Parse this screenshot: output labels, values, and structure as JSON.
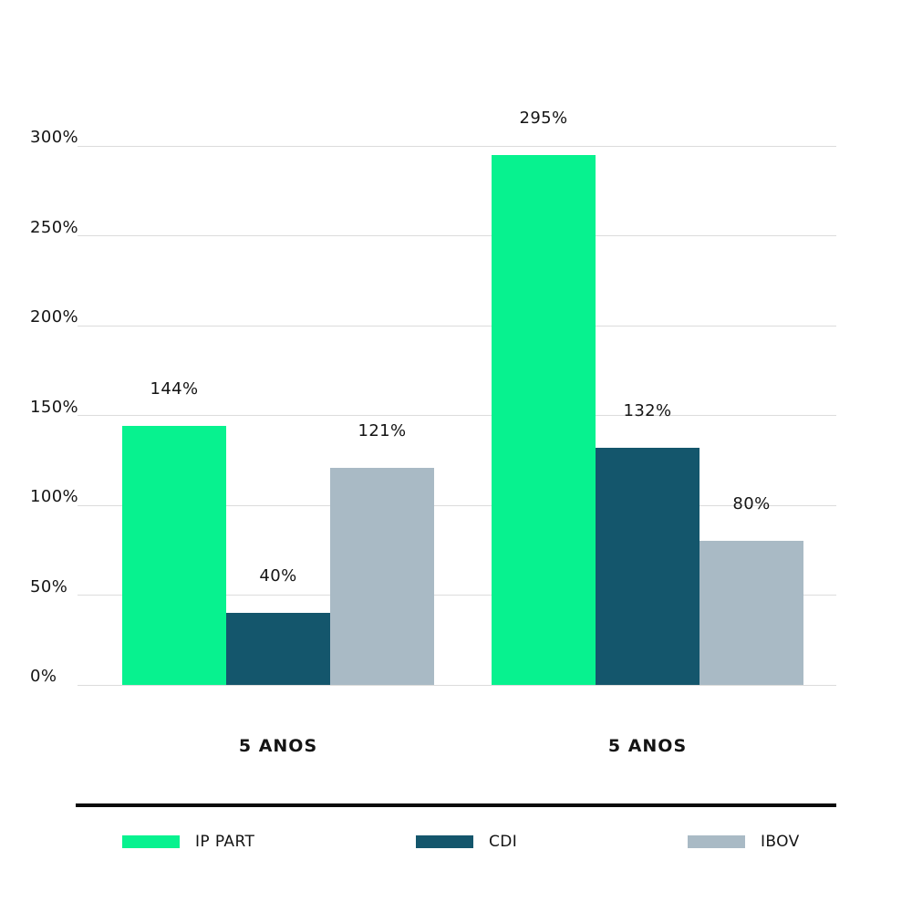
{
  "chart_data": {
    "type": "bar",
    "title": "",
    "categories": [
      "5 ANOS",
      "5 ANOS"
    ],
    "series": [
      {
        "name": "IP PART",
        "color": "#07f28f",
        "values": [
          144,
          295
        ],
        "labels": [
          "144%",
          "295%"
        ]
      },
      {
        "name": "CDI",
        "color": "#14566c",
        "values": [
          40,
          132
        ],
        "labels": [
          "40%",
          "132%"
        ]
      },
      {
        "name": "IBOV",
        "color": "#a9bac5",
        "values": [
          121,
          80
        ],
        "labels": [
          "121%",
          "80%"
        ]
      }
    ],
    "y_ticks": [
      {
        "value": 0,
        "label": "0%"
      },
      {
        "value": 50,
        "label": "50%"
      },
      {
        "value": 100,
        "label": "100%"
      },
      {
        "value": 150,
        "label": "150%"
      },
      {
        "value": 200,
        "label": "200%"
      },
      {
        "value": 250,
        "label": "250%"
      },
      {
        "value": 300,
        "label": "300%"
      }
    ],
    "ylim": [
      0,
      300
    ],
    "grid": true,
    "legend_position": "bottom"
  },
  "colors": {
    "background": "#ffffff",
    "gridline": "#dcdcdc",
    "text": "#141414",
    "divider": "#0b0b0b"
  }
}
